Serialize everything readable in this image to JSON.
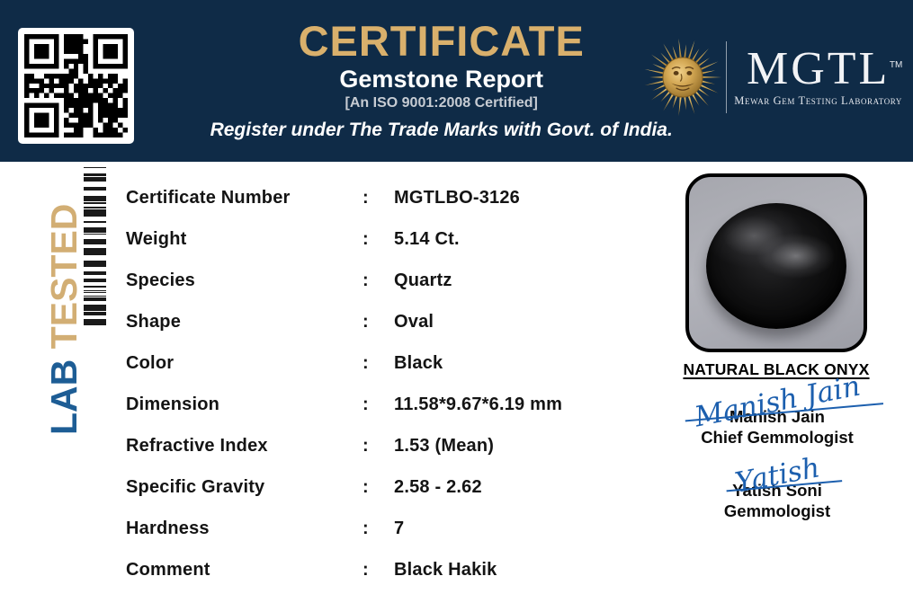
{
  "header": {
    "title": "CERTIFICATE",
    "report_type": "Gemstone Report",
    "iso_note": "[An ISO 9001:2008 Certified]",
    "trademark_note": "Register under The Trade Marks with Govt. of India.",
    "logo": {
      "name": "MGTL",
      "trademark": "TM",
      "tagline": "Mewar Gem Testing Laboratory"
    }
  },
  "stamp": {
    "lab": "LAB",
    "tested": "TESTED"
  },
  "report": {
    "separator": ":",
    "rows": [
      {
        "label": "Certificate Number",
        "value": "MGTLBO-3126"
      },
      {
        "label": "Weight",
        "value": "5.14 Ct."
      },
      {
        "label": "Species",
        "value": "Quartz"
      },
      {
        "label": "Shape",
        "value": "Oval"
      },
      {
        "label": "Color",
        "value": "Black"
      },
      {
        "label": "Dimension",
        "value": "11.58*9.67*6.19 mm"
      },
      {
        "label": "Refractive Index",
        "value": "1.53 (Mean)"
      },
      {
        "label": "Specific Gravity",
        "value": "2.58 - 2.62"
      },
      {
        "label": "Hardness",
        "value": "7"
      },
      {
        "label": "Comment",
        "value": "Black Hakik"
      }
    ]
  },
  "specimen": {
    "caption": "NATURAL BLACK ONYX"
  },
  "signatories": [
    {
      "signature": "Manish Jain",
      "name": "Manish Jain",
      "title": "Chief Gemmologist"
    },
    {
      "signature": "Yatish",
      "name": "Yatish Soni",
      "title": "Gemmologist"
    }
  ],
  "colors": {
    "header_navy": "#0f2b47",
    "title_gold": "#d9b06c",
    "lab_blue": "#1d5d95",
    "tested_gold": "#d2ae74",
    "signature_blue": "#1c5fae"
  }
}
